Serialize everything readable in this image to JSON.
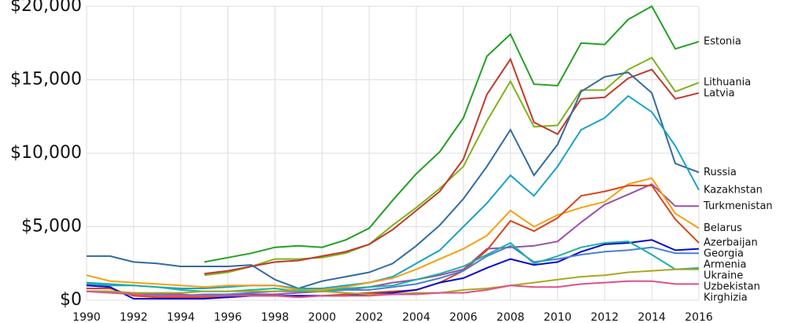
{
  "chart_data": {
    "type": "line",
    "x": [
      1990,
      1991,
      1992,
      1993,
      1994,
      1995,
      1996,
      1997,
      1998,
      1999,
      2000,
      2001,
      2002,
      2003,
      2004,
      2005,
      2006,
      2007,
      2008,
      2009,
      2010,
      2011,
      2012,
      2013,
      2014,
      2015,
      2016
    ],
    "xlim": [
      1990,
      2016
    ],
    "xticks": [
      1990,
      1992,
      1994,
      1996,
      1998,
      2000,
      2002,
      2004,
      2006,
      2008,
      2010,
      2012,
      2014,
      2016
    ],
    "ylim": [
      0,
      20000
    ],
    "yticks": [
      {
        "value": 0,
        "label": "$0"
      },
      {
        "value": 5000,
        "label": "$5,000"
      },
      {
        "value": 10000,
        "label": "$10,000"
      },
      {
        "value": 15000,
        "label": "$15,000"
      },
      {
        "value": 20000,
        "label": "$20,000"
      }
    ],
    "grid": true,
    "series": [
      {
        "name": "Estonia",
        "color": "#23a023",
        "values": [
          null,
          null,
          null,
          null,
          null,
          2600,
          2900,
          3200,
          3600,
          3700,
          3600,
          4100,
          4900,
          6800,
          8600,
          10100,
          12400,
          16600,
          18100,
          14700,
          14600,
          17500,
          17400,
          19100,
          20000,
          17100,
          17600
        ]
      },
      {
        "name": "Lithuania",
        "color": "#7fb21b",
        "values": [
          null,
          null,
          null,
          null,
          null,
          1700,
          1900,
          2300,
          2800,
          2800,
          2900,
          3200,
          3800,
          5100,
          6300,
          7600,
          9100,
          12200,
          14900,
          11800,
          11900,
          14300,
          14300,
          15700,
          16500,
          14200,
          14800
        ]
      },
      {
        "name": "Latvia",
        "color": "#c0392b",
        "values": [
          null,
          null,
          null,
          null,
          null,
          1800,
          2000,
          2300,
          2600,
          2700,
          3000,
          3300,
          3800,
          4800,
          6100,
          7400,
          9600,
          14000,
          16400,
          12100,
          11300,
          13700,
          13800,
          15100,
          15700,
          13700,
          14100
        ]
      },
      {
        "name": "Russia",
        "color": "#336b9e",
        "values": [
          3000,
          3000,
          2600,
          2500,
          2300,
          2300,
          2300,
          2400,
          1400,
          800,
          1300,
          1600,
          1900,
          2500,
          3700,
          5100,
          6900,
          9100,
          11600,
          8500,
          10600,
          14200,
          15200,
          15500,
          14100,
          9300,
          8700
        ]
      },
      {
        "name": "Kazakhstan",
        "color": "#17a2c8",
        "values": [
          1100,
          1000,
          1000,
          900,
          800,
          800,
          900,
          1000,
          1000,
          800,
          800,
          1000,
          1200,
          1600,
          2500,
          3400,
          5000,
          6600,
          8500,
          7100,
          9100,
          11600,
          12400,
          13900,
          12800,
          10500,
          7500
        ]
      },
      {
        "name": "Turkmenistan",
        "color": "#9b4fa8",
        "values": [
          600,
          600,
          500,
          400,
          400,
          300,
          400,
          400,
          400,
          500,
          600,
          700,
          900,
          1200,
          1400,
          1700,
          2100,
          3500,
          3600,
          3700,
          4000,
          5300,
          6500,
          7200,
          7900,
          6400,
          6400
        ]
      },
      {
        "name": "Belarus",
        "color": "#f5a00f",
        "values": [
          1700,
          1300,
          1200,
          1100,
          1000,
          900,
          1000,
          1000,
          1000,
          700,
          700,
          900,
          1200,
          1500,
          2100,
          2800,
          3500,
          4400,
          6100,
          5000,
          5800,
          6300,
          6700,
          7900,
          8300,
          5900,
          4900
        ]
      },
      {
        "name": "Azerbaijan",
        "color": "#d9441c",
        "values": [
          800,
          800,
          300,
          200,
          200,
          200,
          200,
          300,
          300,
          300,
          300,
          400,
          500,
          600,
          700,
          1200,
          2000,
          3400,
          5400,
          4700,
          5600,
          7100,
          7400,
          7800,
          7800,
          5500,
          3900
        ]
      },
      {
        "name": "Georgia",
        "color": "#0a0ad0",
        "values": [
          1000,
          900,
          100,
          100,
          100,
          100,
          200,
          300,
          300,
          300,
          300,
          300,
          400,
          500,
          700,
          1200,
          1500,
          2200,
          2800,
          2400,
          2600,
          3300,
          3800,
          3900,
          4100,
          3400,
          3500
        ]
      },
      {
        "name": "Armenia",
        "color": "#4a7fd4",
        "values": [
          600,
          600,
          400,
          400,
          300,
          400,
          400,
          500,
          600,
          600,
          600,
          700,
          700,
          900,
          1100,
          1500,
          2000,
          3000,
          3700,
          2600,
          2800,
          3100,
          3300,
          3400,
          3600,
          3200,
          3200
        ]
      },
      {
        "name": "Ukraine",
        "color": "#1fb0a0",
        "values": [
          1200,
          1100,
          1000,
          900,
          700,
          600,
          600,
          700,
          800,
          600,
          600,
          800,
          900,
          1000,
          1400,
          1800,
          2300,
          3100,
          3900,
          2500,
          3000,
          3600,
          3900,
          4000,
          3100,
          2100,
          2200
        ]
      },
      {
        "name": "Uzbekistan",
        "color": "#a8a820",
        "values": [
          600,
          600,
          500,
          500,
          500,
          600,
          600,
          600,
          600,
          700,
          600,
          500,
          400,
          400,
          500,
          500,
          700,
          800,
          1000,
          1200,
          1400,
          1600,
          1700,
          1900,
          2000,
          2100,
          2100
        ]
      },
      {
        "name": "Kirghizia",
        "color": "#e0508a",
        "values": [
          600,
          500,
          400,
          300,
          300,
          300,
          300,
          300,
          300,
          200,
          300,
          300,
          300,
          400,
          400,
          500,
          500,
          700,
          1000,
          900,
          900,
          1100,
          1200,
          1300,
          1300,
          1100,
          1100
        ]
      }
    ]
  }
}
